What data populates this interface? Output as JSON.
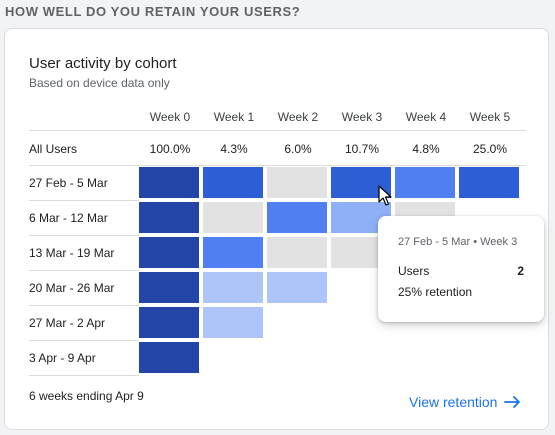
{
  "section_heading": "HOW WELL DO YOU RETAIN YOUR USERS?",
  "card": {
    "title": "User activity by cohort",
    "subtitle": "Based on device data only",
    "footer_note": "6 weeks ending Apr 9",
    "view_link": "View retention"
  },
  "colors": {
    "week0": "#2445a8",
    "week1_high": "#2c5fd6",
    "mid_blue": "#4f7ff0",
    "light_blue": "#8fb0f7",
    "pale_blue": "#aec5fa",
    "empty": "#e2e2e2",
    "link": "#1a73e8"
  },
  "chart_data": {
    "type": "heatmap",
    "title": "User activity by cohort",
    "columns": [
      "Week 0",
      "Week 1",
      "Week 2",
      "Week 3",
      "Week 4",
      "Week 5"
    ],
    "all_users": {
      "label": "All Users",
      "values": [
        "100.0%",
        "4.3%",
        "6.0%",
        "10.7%",
        "4.8%",
        "25.0%"
      ]
    },
    "rows": [
      {
        "label": "27 Feb - 5 Mar",
        "cells": [
          "week0",
          "week1_high",
          "empty",
          "week1_high",
          "mid_blue",
          "week1_high"
        ]
      },
      {
        "label": "6 Mar - 12 Mar",
        "cells": [
          "week0",
          "empty",
          "mid_blue",
          "light_blue",
          "empty",
          null
        ]
      },
      {
        "label": "13 Mar - 19 Mar",
        "cells": [
          "week0",
          "mid_blue",
          "empty",
          "empty",
          null,
          null
        ]
      },
      {
        "label": "20 Mar - 26 Mar",
        "cells": [
          "week0",
          "pale_blue",
          "pale_blue",
          null,
          null,
          null
        ]
      },
      {
        "label": "27 Mar - 2 Apr",
        "cells": [
          "week0",
          "pale_blue",
          null,
          null,
          null,
          null
        ]
      },
      {
        "label": "3 Apr - 9 Apr",
        "cells": [
          "week0",
          null,
          null,
          null,
          null,
          null
        ]
      }
    ]
  },
  "tooltip": {
    "title": "27 Feb - 5 Mar • Week 3",
    "label": "Users",
    "value": "2",
    "retention": "25% retention"
  },
  "cursor_icon": "arrow-cursor-icon",
  "link_icon": "arrow-right-icon"
}
